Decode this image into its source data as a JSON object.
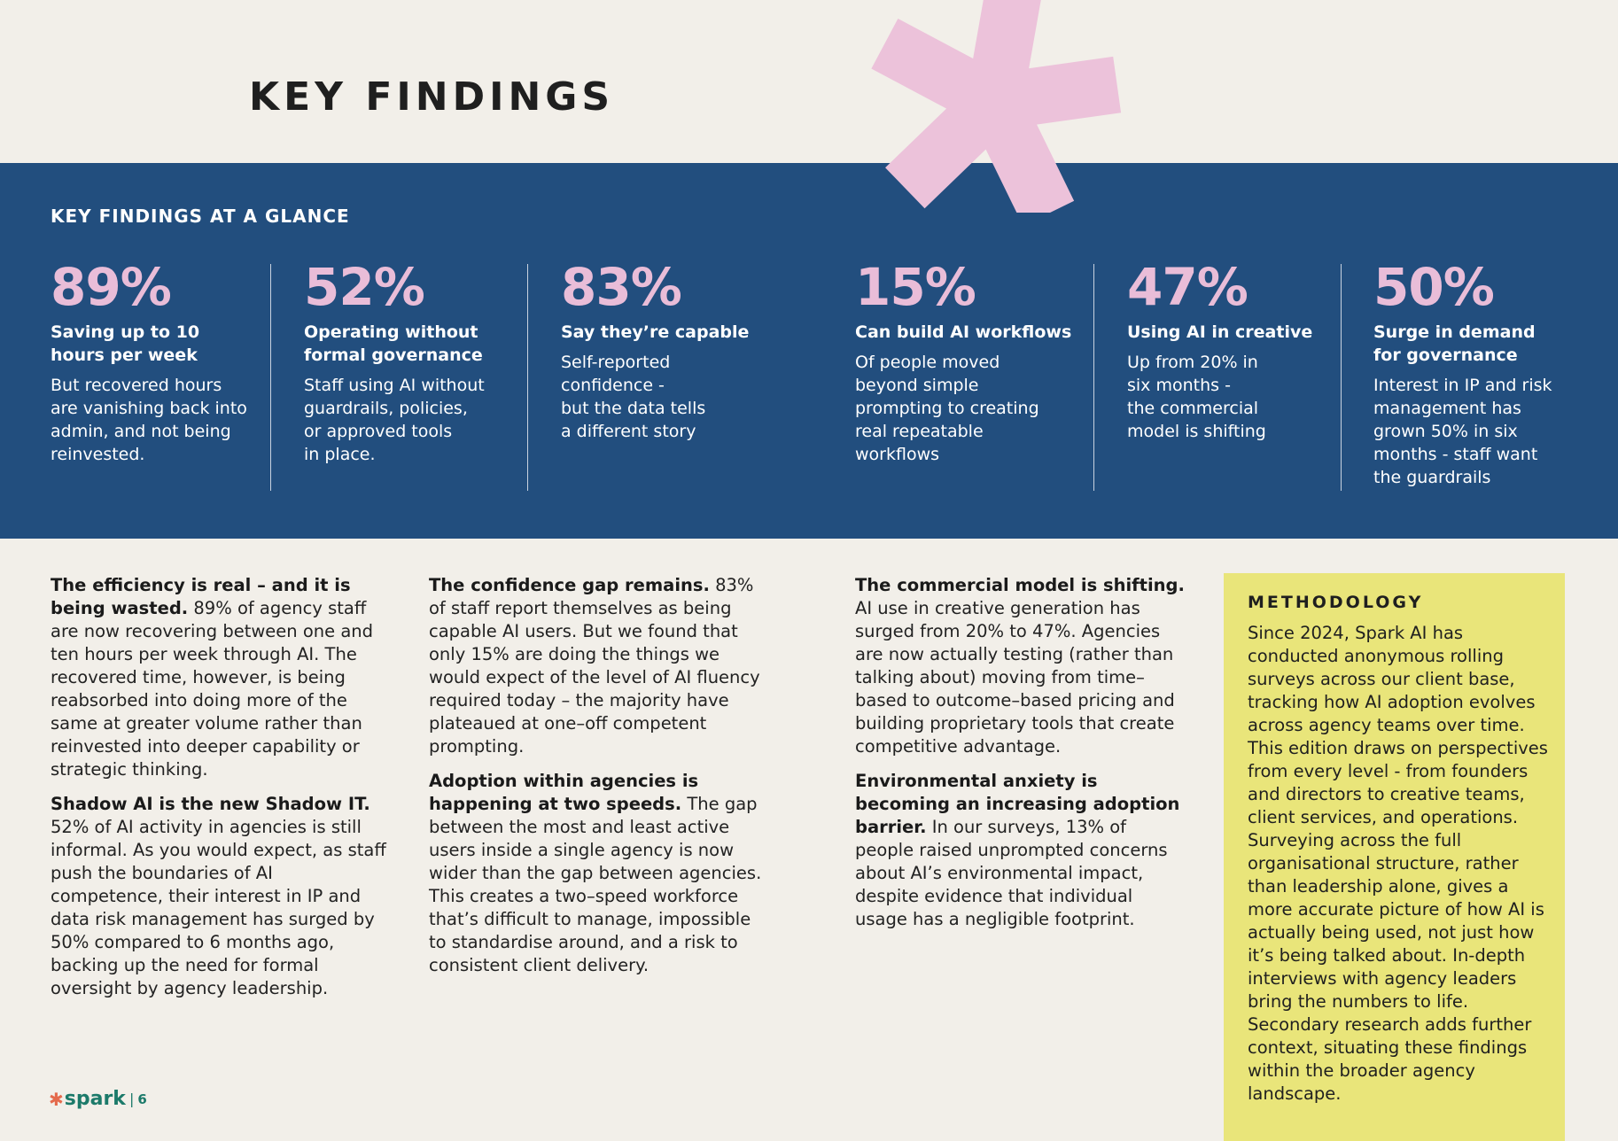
{
  "page": {
    "title": "KEY FINDINGS",
    "band_heading": "KEY FINDINGS AT A GLANCE"
  },
  "stats": [
    {
      "value": "89%",
      "label": [
        "Saving up to 10",
        "hours per week"
      ],
      "desc": [
        "But recovered hours",
        "are vanishing back into",
        "admin, and not being",
        "reinvested."
      ]
    },
    {
      "value": "52%",
      "label": [
        "Operating without",
        "formal governance"
      ],
      "desc": [
        "Staff using AI without",
        "guardrails, policies,",
        "or approved tools",
        "in place."
      ]
    },
    {
      "value": "83%",
      "label": [
        "Say they’re capable"
      ],
      "desc": [
        "Self-reported",
        "confidence -",
        "but the data tells",
        "a different story"
      ]
    },
    {
      "value": "15%",
      "label": [
        "Can build AI workflows"
      ],
      "desc": [
        "Of people moved",
        "beyond simple",
        "prompting to creating",
        "real repeatable",
        "workflows"
      ]
    },
    {
      "value": "47%",
      "label": [
        "Using AI in creative"
      ],
      "desc": [
        "Up from 20% in",
        "six months -",
        "the commercial",
        "model is shifting"
      ]
    },
    {
      "value": "50%",
      "label": [
        "Surge in demand",
        "for governance"
      ],
      "desc": [
        "Interest in IP and risk",
        "management has",
        "grown 50% in six",
        "months - staff want",
        "the guardrails"
      ]
    }
  ],
  "columns": [
    [
      {
        "bold": "The efficiency is real – and it is being wasted.",
        "text": " 89% of agency staff are now recovering between one and ten hours per week through AI. The recovered time, however, is being reabsorbed into doing more of the same at greater volume rather than reinvested into deeper capability or strategic thinking."
      },
      {
        "bold": "Shadow AI is the new Shadow IT.",
        "text": " 52% of AI activity in agencies is still informal. As you would expect, as staff push the boundaries of AI competence, their interest in IP and data risk management has surged by 50% compared to 6 months ago, backing up the need for formal oversight by agency leadership."
      }
    ],
    [
      {
        "bold": "The confidence gap remains.",
        "text": " 83% of staff report themselves as being capable AI users. But we found that only 15% are doing the things we would expect of the level of AI fluency required today – the majority have plateaued at one–off competent prompting."
      },
      {
        "bold": "Adoption within agencies is happening at two speeds.",
        "text": " The gap between the most and least active users inside a single agency is now wider than the gap between agencies. This creates a two–speed workforce that’s difficult to manage, impossible to standardise around, and a risk to consistent client delivery."
      }
    ],
    [
      {
        "bold": "The commercial model is shifting.",
        "text": " AI use in creative generation has surged from 20% to 47%. Agencies are now actually testing (rather than talking about) moving from time–based to outcome–based pricing and building proprietary tools that create competitive advantage."
      },
      {
        "bold": "Environmental anxiety is becoming an increasing adoption barrier.",
        "text": " In our surveys, 13% of people raised unprompted concerns about AI’s environmental impact, despite evidence that individual usage has a negligible footprint."
      }
    ]
  ],
  "methodology": {
    "title": "METHODOLOGY",
    "body": "Since 2024, Spark AI has conducted anonymous rolling surveys across our client base, tracking how AI adoption evolves across agency teams over time. This edition draws on perspectives from every level - from founders and directors to creative teams, client services, and operations. Surveying across the full organisational structure, rather than leadership alone, gives a more accurate picture of how AI is actually being used, not just how it’s being talked about. In-depth interviews with agency leaders bring the numbers to life. Secondary research adds further context, situating these findings within the broader agency landscape."
  },
  "footer": {
    "logo": "spark",
    "separator": "|",
    "page_number": "6"
  },
  "colors": {
    "background": "#f2efe9",
    "band": "#224e7e",
    "stat_pink": "#e9bdd8",
    "asterisk_pink": "#ecc2da",
    "methodology_bg": "#e9e57a",
    "logo_teal": "#1c7a6a",
    "logo_star": "#e46a4c"
  }
}
